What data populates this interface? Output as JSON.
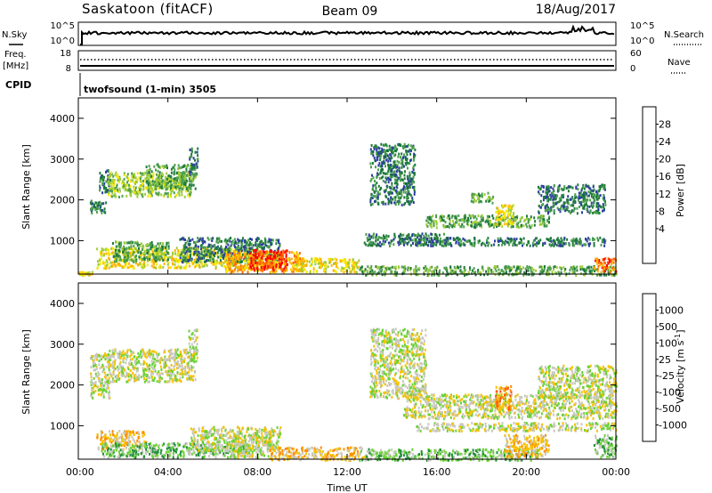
{
  "header": {
    "station": "Saskatoon (fitACF)",
    "beam": "Beam 09",
    "date": "18/Aug/2017"
  },
  "top_panels": {
    "nsky_label": "N.Sky",
    "nsearch_label": "N.Search",
    "nsky_ticks": [
      "10^5",
      "10^0"
    ],
    "nsearch_ticks": [
      "10^5",
      "10^0"
    ],
    "freq_label": "Freq.",
    "freq_unit": "[MHz]",
    "freq_ticks": [
      "18",
      "8"
    ],
    "nave_label": "Nave",
    "nave_ticks": [
      "60",
      "0"
    ],
    "cpid_label": "CPID",
    "cpid_text": "twofsound (1-min) 3505"
  },
  "legend_power": {
    "label": "Power [dB]",
    "ticks": [
      "28",
      "24",
      "20",
      "16",
      "12",
      "8",
      "4"
    ],
    "colors": [
      "#0000ff",
      "#2b3fa0",
      "#1e7a3c",
      "#4fa04f",
      "#9dcc3a",
      "#f5e600",
      "#ffb000",
      "#ff6a00",
      "#ff0000"
    ]
  },
  "legend_velocity": {
    "label_main": "Velocity",
    "label_unit": "[m s",
    "label_exp": "-1",
    "label_close": "]",
    "ticks": [
      "1000",
      "500",
      "100",
      "25",
      "-25",
      "-100",
      "-500",
      "-1000"
    ],
    "colors": [
      "#1c3ccc",
      "#2e6ed8",
      "#1f8f3a",
      "#6ad234",
      "#c8c8c0",
      "#f5c200",
      "#ff8c00",
      "#ff5010",
      "#ff0000"
    ]
  },
  "chart_data": [
    {
      "type": "heatmap",
      "name": "Power [dB]",
      "ylabel": "Slant Range [km]",
      "xlabel": "",
      "x_ticks": [],
      "y_ticks": [
        "1000",
        "2000",
        "3000",
        "4000"
      ],
      "xlim": [
        0,
        24
      ],
      "ylim": [
        180,
        4500
      ],
      "legend": "Power [dB]",
      "regions": [
        {
          "t0": 0.0,
          "t1": 0.6,
          "r0": 180,
          "r1": 260,
          "value_db": 20
        },
        {
          "t0": 0.5,
          "t1": 1.2,
          "r0": 1700,
          "r1": 2000,
          "value_db": 6
        },
        {
          "t0": 0.9,
          "t1": 1.4,
          "r0": 2200,
          "r1": 2800,
          "value_db": 8
        },
        {
          "t0": 1.3,
          "t1": 5.0,
          "r0": 2100,
          "r1": 2700,
          "value_db": 16
        },
        {
          "t0": 3.0,
          "t1": 5.2,
          "r0": 2300,
          "r1": 2900,
          "value_db": 12
        },
        {
          "t0": 4.9,
          "t1": 5.3,
          "r0": 2600,
          "r1": 3300,
          "value_db": 6
        },
        {
          "t0": 0.8,
          "t1": 8.0,
          "r0": 350,
          "r1": 850,
          "value_db": 18
        },
        {
          "t0": 1.5,
          "t1": 4.0,
          "r0": 500,
          "r1": 1000,
          "value_db": 10
        },
        {
          "t0": 4.5,
          "t1": 9.0,
          "r0": 500,
          "r1": 1100,
          "value_db": 8
        },
        {
          "t0": 6.5,
          "t1": 10.0,
          "r0": 250,
          "r1": 750,
          "value_db": 25
        },
        {
          "t0": 7.6,
          "t1": 9.3,
          "r0": 300,
          "r1": 800,
          "value_db": 30
        },
        {
          "t0": 9.5,
          "t1": 12.5,
          "r0": 250,
          "r1": 600,
          "value_db": 18
        },
        {
          "t0": 12.5,
          "t1": 24.0,
          "r0": 180,
          "r1": 400,
          "value_db": 10
        },
        {
          "t0": 12.7,
          "t1": 16.5,
          "r0": 900,
          "r1": 1200,
          "value_db": 8
        },
        {
          "t0": 13.0,
          "t1": 15.0,
          "r0": 1900,
          "r1": 3400,
          "value_db": 8
        },
        {
          "t0": 15.0,
          "t1": 23.5,
          "r0": 900,
          "r1": 1100,
          "value_db": 8
        },
        {
          "t0": 15.5,
          "t1": 21.0,
          "r0": 1350,
          "r1": 1650,
          "value_db": 10
        },
        {
          "t0": 18.6,
          "t1": 19.4,
          "r0": 1400,
          "r1": 1900,
          "value_db": 20
        },
        {
          "t0": 17.5,
          "t1": 18.5,
          "r0": 1950,
          "r1": 2200,
          "value_db": 12
        },
        {
          "t0": 20.5,
          "t1": 23.5,
          "r0": 1700,
          "r1": 2400,
          "value_db": 8
        },
        {
          "t0": 23.0,
          "t1": 24.0,
          "r0": 250,
          "r1": 600,
          "value_db": 28
        }
      ]
    },
    {
      "type": "heatmap",
      "name": "Velocity [m s-1]",
      "ylabel": "Slant Range [km]",
      "xlabel": "Time UT",
      "x_ticks": [
        "00:00",
        "04:00",
        "08:00",
        "12:00",
        "16:00",
        "20:00",
        "00:00"
      ],
      "x_tick_hours": [
        0,
        4,
        8,
        12,
        16,
        20,
        24
      ],
      "y_ticks": [
        "1000",
        "2000",
        "3000",
        "4000"
      ],
      "xlim": [
        0,
        24
      ],
      "ylim": [
        180,
        4500
      ],
      "legend": "Velocity [m s-1]",
      "regions": [
        {
          "t0": 0.5,
          "t1": 1.4,
          "r0": 1700,
          "r1": 2800,
          "value_ms": 0
        },
        {
          "t0": 1.3,
          "t1": 5.2,
          "r0": 2100,
          "r1": 2900,
          "value_ms": 0
        },
        {
          "t0": 4.9,
          "t1": 5.3,
          "r0": 2600,
          "r1": 3400,
          "value_ms": 0
        },
        {
          "t0": 0.8,
          "t1": 3.0,
          "r0": 450,
          "r1": 900,
          "value_ms": -60
        },
        {
          "t0": 1.0,
          "t1": 7.5,
          "r0": 250,
          "r1": 600,
          "value_ms": 60
        },
        {
          "t0": 5.0,
          "t1": 9.0,
          "r0": 400,
          "r1": 1000,
          "value_ms": 0
        },
        {
          "t0": 6.8,
          "t1": 8.6,
          "r0": 250,
          "r1": 800,
          "value_ms": 0
        },
        {
          "t0": 8.5,
          "t1": 12.8,
          "r0": 180,
          "r1": 500,
          "value_ms": -60
        },
        {
          "t0": 12.5,
          "t1": 20.5,
          "r0": 180,
          "r1": 450,
          "value_ms": 60
        },
        {
          "t0": 13.0,
          "t1": 15.5,
          "r0": 1700,
          "r1": 3400,
          "value_ms": 0
        },
        {
          "t0": 14.5,
          "t1": 24.0,
          "r0": 1200,
          "r1": 1800,
          "value_ms": 0
        },
        {
          "t0": 15.0,
          "t1": 24.0,
          "r0": 900,
          "r1": 1100,
          "value_ms": 0
        },
        {
          "t0": 18.6,
          "t1": 19.3,
          "r0": 1400,
          "r1": 2000,
          "value_ms": -250
        },
        {
          "t0": 19.0,
          "t1": 21.0,
          "r0": 250,
          "r1": 800,
          "value_ms": -60
        },
        {
          "t0": 20.5,
          "t1": 24.0,
          "r0": 1700,
          "r1": 2500,
          "value_ms": 0
        },
        {
          "t0": 23.0,
          "t1": 24.0,
          "r0": 250,
          "r1": 800,
          "value_ms": 60
        }
      ]
    }
  ]
}
